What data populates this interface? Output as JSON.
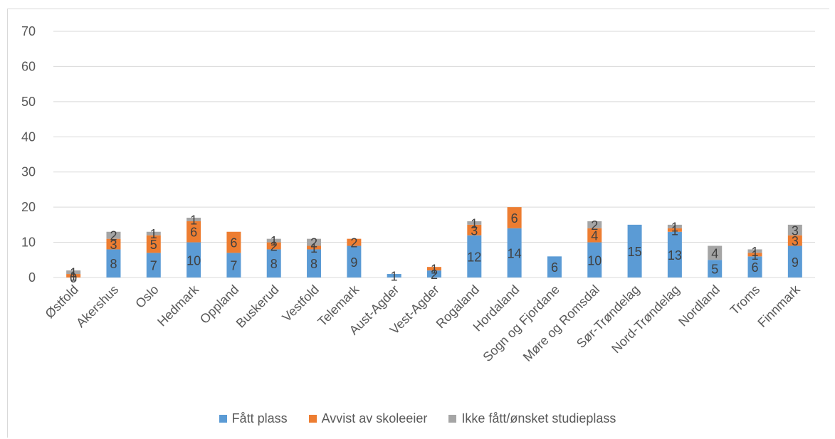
{
  "chart_data": {
    "type": "bar",
    "stacked": true,
    "categories": [
      "Østfold",
      "Akershus",
      "Oslo",
      "Hedmark",
      "Oppland",
      "Buskerud",
      "Vestfold",
      "Telemark",
      "Aust-Agder",
      "Vest-Agder",
      "Rogaland",
      "Hordaland",
      "Sogn og Fjordane",
      "Møre og Romsdal",
      "Sør-Trøndelag",
      "Nord-Trøndelag",
      "Nordland",
      "Troms",
      "Finnmark"
    ],
    "series": [
      {
        "name": "Fått plass",
        "color": "#5b9bd5",
        "values": [
          0,
          8,
          7,
          10,
          7,
          8,
          8,
          9,
          1,
          2,
          12,
          14,
          6,
          10,
          15,
          13,
          5,
          6,
          9
        ]
      },
      {
        "name": "Avvist av skoleeier",
        "color": "#ed7d31",
        "values": [
          1,
          3,
          5,
          6,
          6,
          2,
          1,
          2,
          0,
          1,
          3,
          6,
          0,
          4,
          0,
          1,
          0,
          1,
          3
        ]
      },
      {
        "name": "Ikke fått/ønsket studieplass",
        "color": "#a5a5a5",
        "values": [
          1,
          2,
          1,
          1,
          0,
          1,
          2,
          0,
          0,
          0,
          1,
          0,
          0,
          2,
          0,
          1,
          4,
          1,
          3
        ]
      }
    ],
    "y_ticks": [
      "0",
      "10",
      "20",
      "30",
      "40",
      "50",
      "60",
      "70"
    ],
    "ylim": [
      0,
      70
    ],
    "grid": true,
    "legend_position": "bottom"
  }
}
